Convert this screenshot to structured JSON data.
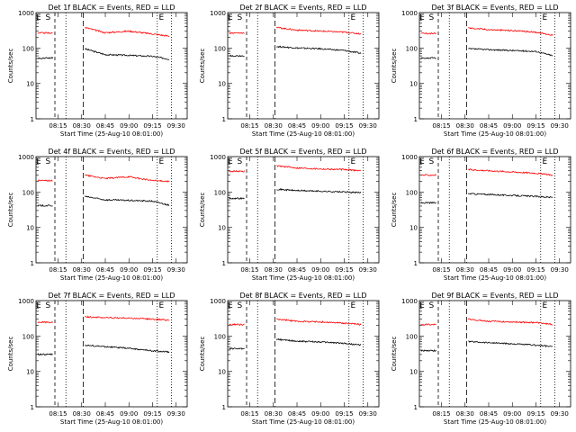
{
  "figure": {
    "xlabel": "Start Time (25-Aug-10 08:01:00)",
    "ylabel": "Counts/sec",
    "y_tick_labels": [
      "1",
      "10",
      "100",
      "1000"
    ],
    "x_tick_labels": [
      "08:15",
      "08:30",
      "08:45",
      "09:00",
      "09:15",
      "09:30"
    ],
    "series_colors": {
      "events": "#000000",
      "lld": "#ff0000"
    }
  },
  "chart_data": [
    {
      "type": "line",
      "title": "Det 1f BLACK = Events, RED = LLD",
      "xlabel": "Start Time (25-Aug-10 08:01:00)",
      "ylabel": "Counts/sec",
      "yscale": "log",
      "ylim": [
        1,
        1000
      ],
      "xlim_minutes_after_start": [
        0,
        96
      ],
      "x_ticks": [
        "08:15",
        "08:30",
        "08:45",
        "09:00",
        "09:15",
        "09:30"
      ],
      "markers": [
        {
          "label": "E",
          "x": "08:01"
        },
        {
          "label": "S",
          "x": "08:07"
        },
        {
          "label": "E",
          "x": "09:19"
        }
      ],
      "series": [
        {
          "name": "Events",
          "color": "#000000",
          "x": [
            "08:32",
            "08:45",
            "09:00",
            "09:15",
            "09:26"
          ],
          "y": [
            95,
            65,
            62,
            58,
            48
          ]
        },
        {
          "name": "LLD",
          "color": "#ff0000",
          "x": [
            "08:32",
            "08:45",
            "09:00",
            "09:15",
            "09:26"
          ],
          "y": [
            380,
            270,
            300,
            250,
            215
          ]
        }
      ]
    },
    {
      "type": "line",
      "title": "Det 2f BLACK = Events, RED = LLD",
      "xlabel": "Start Time (25-Aug-10 08:01:00)",
      "ylabel": "Counts/sec",
      "yscale": "log",
      "ylim": [
        1,
        1000
      ],
      "xlim_minutes_after_start": [
        0,
        96
      ],
      "x_ticks": [
        "08:15",
        "08:30",
        "08:45",
        "09:00",
        "09:15",
        "09:30"
      ],
      "markers": [
        {
          "label": "E",
          "x": "08:01"
        },
        {
          "label": "S",
          "x": "08:07"
        },
        {
          "label": "E",
          "x": "09:19"
        }
      ],
      "series": [
        {
          "name": "Events",
          "color": "#000000",
          "x": [
            "08:32",
            "08:45",
            "09:00",
            "09:15",
            "09:26"
          ],
          "y": [
            110,
            100,
            95,
            85,
            70
          ]
        },
        {
          "name": "LLD",
          "color": "#ff0000",
          "x": [
            "08:32",
            "08:45",
            "09:00",
            "09:15",
            "09:26"
          ],
          "y": [
            380,
            320,
            300,
            280,
            250
          ]
        }
      ]
    },
    {
      "type": "line",
      "title": "Det 3f BLACK = Events, RED = LLD",
      "xlabel": "Start Time (25-Aug-10 08:01:00)",
      "ylabel": "Counts/sec",
      "yscale": "log",
      "ylim": [
        1,
        1000
      ],
      "xlim_minutes_after_start": [
        0,
        96
      ],
      "x_ticks": [
        "08:15",
        "08:30",
        "08:45",
        "09:00",
        "09:15",
        "09:30"
      ],
      "markers": [
        {
          "label": "E",
          "x": "08:01"
        },
        {
          "label": "S",
          "x": "08:07"
        },
        {
          "label": "E",
          "x": "09:19"
        }
      ],
      "series": [
        {
          "name": "Events",
          "color": "#000000",
          "x": [
            "08:32",
            "08:45",
            "09:00",
            "09:15",
            "09:26"
          ],
          "y": [
            95,
            90,
            85,
            80,
            60
          ]
        },
        {
          "name": "LLD",
          "color": "#ff0000",
          "x": [
            "08:32",
            "08:45",
            "09:00",
            "09:15",
            "09:26"
          ],
          "y": [
            370,
            330,
            310,
            280,
            230
          ]
        }
      ]
    },
    {
      "type": "line",
      "title": "Det 4f BLACK = Events, RED = LLD",
      "xlabel": "Start Time (25-Aug-10 08:01:00)",
      "ylabel": "Counts/sec",
      "yscale": "log",
      "ylim": [
        1,
        1000
      ],
      "xlim_minutes_after_start": [
        0,
        96
      ],
      "x_ticks": [
        "08:15",
        "08:30",
        "08:45",
        "09:00",
        "09:15",
        "09:30"
      ],
      "markers": [
        {
          "label": "E",
          "x": "08:01"
        },
        {
          "label": "S",
          "x": "08:07"
        },
        {
          "label": "E",
          "x": "09:19"
        }
      ],
      "series": [
        {
          "name": "Events",
          "color": "#000000",
          "x": [
            "08:32",
            "08:45",
            "09:00",
            "09:15",
            "09:26"
          ],
          "y": [
            75,
            60,
            58,
            55,
            42
          ]
        },
        {
          "name": "LLD",
          "color": "#ff0000",
          "x": [
            "08:32",
            "08:45",
            "09:00",
            "09:15",
            "09:26"
          ],
          "y": [
            300,
            240,
            270,
            210,
            200
          ]
        }
      ]
    },
    {
      "type": "line",
      "title": "Det 5f BLACK = Events, RED = LLD",
      "xlabel": "Start Time (25-Aug-10 08:01:00)",
      "ylabel": "Counts/sec",
      "yscale": "log",
      "ylim": [
        1,
        1000
      ],
      "xlim_minutes_after_start": [
        0,
        96
      ],
      "x_ticks": [
        "08:15",
        "08:30",
        "08:45",
        "09:00",
        "09:15",
        "09:30"
      ],
      "markers": [
        {
          "label": "E",
          "x": "08:01"
        },
        {
          "label": "S",
          "x": "08:07"
        },
        {
          "label": "E",
          "x": "09:19"
        }
      ],
      "series": [
        {
          "name": "Events",
          "color": "#000000",
          "x": [
            "08:32",
            "08:45",
            "09:00",
            "09:15",
            "09:26"
          ],
          "y": [
            120,
            110,
            105,
            100,
            95
          ]
        },
        {
          "name": "LLD",
          "color": "#ff0000",
          "x": [
            "08:32",
            "08:45",
            "09:00",
            "09:15",
            "09:26"
          ],
          "y": [
            550,
            480,
            450,
            430,
            400
          ]
        }
      ]
    },
    {
      "type": "line",
      "title": "Det 6f BLACK = Events, RED = LLD",
      "xlabel": "Start Time (25-Aug-10 08:01:00)",
      "ylabel": "Counts/sec",
      "yscale": "log",
      "ylim": [
        1,
        1000
      ],
      "xlim_minutes_after_start": [
        0,
        96
      ],
      "x_ticks": [
        "08:15",
        "08:30",
        "08:45",
        "09:00",
        "09:15",
        "09:30"
      ],
      "markers": [
        {
          "label": "E",
          "x": "08:01"
        },
        {
          "label": "S",
          "x": "08:07"
        },
        {
          "label": "E",
          "x": "09:19"
        }
      ],
      "series": [
        {
          "name": "Events",
          "color": "#000000",
          "x": [
            "08:32",
            "08:45",
            "09:00",
            "09:15",
            "09:26"
          ],
          "y": [
            90,
            85,
            80,
            75,
            70
          ]
        },
        {
          "name": "LLD",
          "color": "#ff0000",
          "x": [
            "08:32",
            "08:45",
            "09:00",
            "09:15",
            "09:26"
          ],
          "y": [
            430,
            400,
            370,
            340,
            300
          ]
        }
      ]
    },
    {
      "type": "line",
      "title": "Det 7f BLACK = Events, RED = LLD",
      "xlabel": "Start Time (25-Aug-10 08:01:00)",
      "ylabel": "Counts/sec",
      "yscale": "log",
      "ylim": [
        1,
        1000
      ],
      "xlim_minutes_after_start": [
        0,
        96
      ],
      "x_ticks": [
        "08:15",
        "08:30",
        "08:45",
        "09:00",
        "09:15",
        "09:30"
      ],
      "markers": [
        {
          "label": "E",
          "x": "08:01"
        },
        {
          "label": "S",
          "x": "08:07"
        },
        {
          "label": "E",
          "x": "09:19"
        }
      ],
      "series": [
        {
          "name": "Events",
          "color": "#000000",
          "x": [
            "08:32",
            "08:45",
            "09:00",
            "09:15",
            "09:26"
          ],
          "y": [
            55,
            50,
            45,
            38,
            35
          ]
        },
        {
          "name": "LLD",
          "color": "#ff0000",
          "x": [
            "08:32",
            "08:45",
            "09:00",
            "09:15",
            "09:26"
          ],
          "y": [
            350,
            330,
            320,
            300,
            280
          ]
        }
      ]
    },
    {
      "type": "line",
      "title": "Det 8f BLACK = Events, RED = LLD",
      "xlabel": "Start Time (25-Aug-10 08:01:00)",
      "ylabel": "Counts/sec",
      "yscale": "log",
      "ylim": [
        1,
        1000
      ],
      "xlim_minutes_after_start": [
        0,
        96
      ],
      "x_ticks": [
        "08:15",
        "08:30",
        "08:45",
        "09:00",
        "09:15",
        "09:30"
      ],
      "markers": [
        {
          "label": "E",
          "x": "08:01"
        },
        {
          "label": "S",
          "x": "08:07"
        },
        {
          "label": "E",
          "x": "09:19"
        }
      ],
      "series": [
        {
          "name": "Events",
          "color": "#000000",
          "x": [
            "08:32",
            "08:45",
            "09:00",
            "09:15",
            "09:26"
          ],
          "y": [
            80,
            72,
            68,
            62,
            55
          ]
        },
        {
          "name": "LLD",
          "color": "#ff0000",
          "x": [
            "08:32",
            "08:45",
            "09:00",
            "09:15",
            "09:26"
          ],
          "y": [
            300,
            260,
            250,
            230,
            210
          ]
        }
      ]
    },
    {
      "type": "line",
      "title": "Det 9f BLACK = Events, RED = LLD",
      "xlabel": "Start Time (25-Aug-10 08:01:00)",
      "ylabel": "Counts/sec",
      "yscale": "log",
      "ylim": [
        1,
        1000
      ],
      "xlim_minutes_after_start": [
        0,
        96
      ],
      "x_ticks": [
        "08:15",
        "08:30",
        "08:45",
        "09:00",
        "09:15",
        "09:30"
      ],
      "markers": [
        {
          "label": "E",
          "x": "08:01"
        },
        {
          "label": "S",
          "x": "08:07"
        },
        {
          "label": "E",
          "x": "09:19"
        }
      ],
      "series": [
        {
          "name": "Events",
          "color": "#000000",
          "x": [
            "08:32",
            "08:45",
            "09:00",
            "09:15",
            "09:26"
          ],
          "y": [
            70,
            65,
            60,
            55,
            50
          ]
        },
        {
          "name": "LLD",
          "color": "#ff0000",
          "x": [
            "08:32",
            "08:45",
            "09:00",
            "09:15",
            "09:26"
          ],
          "y": [
            300,
            260,
            250,
            240,
            210
          ]
        }
      ]
    }
  ]
}
